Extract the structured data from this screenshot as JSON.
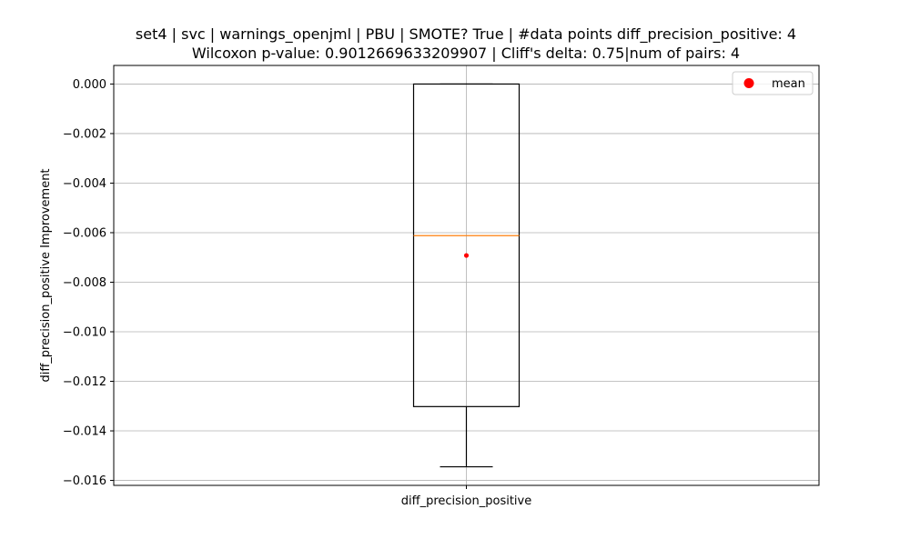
{
  "chart_data": {
    "type": "box",
    "title_lines": [
      "set4 | svc | warnings_openjml | PBU | SMOTE? True | #data points diff_precision_positive: 4",
      "Wilcoxon p-value: 0.9012669633209907 | Cliff's delta: 0.75|num of pairs: 4"
    ],
    "xlabel": "",
    "ylabel": "diff_precision_positive Improvement",
    "categories": [
      "diff_precision_positive"
    ],
    "ylim": [
      -0.0162,
      0.00075
    ],
    "yticks": [
      0.0,
      -0.002,
      -0.004,
      -0.006,
      -0.008,
      -0.01,
      -0.012,
      -0.014,
      -0.016
    ],
    "ytick_labels": [
      "0.000",
      "−0.002",
      "−0.004",
      "−0.006",
      "−0.008",
      "−0.010",
      "−0.012",
      "−0.014",
      "−0.016"
    ],
    "grid": true,
    "box": {
      "whisker_low": -0.01545,
      "q1": -0.01302,
      "median": -0.00612,
      "q3": 0.0,
      "whisker_high": 0.0,
      "mean": -0.00692
    },
    "legend": {
      "position": "top-right",
      "entries": [
        {
          "label": "mean",
          "color": "#ff0000",
          "marker": "circle"
        }
      ]
    },
    "colors": {
      "box": "#000000",
      "median": "#ff7f0e",
      "mean": "#ff0000",
      "grid": "#b0b0b0"
    }
  }
}
